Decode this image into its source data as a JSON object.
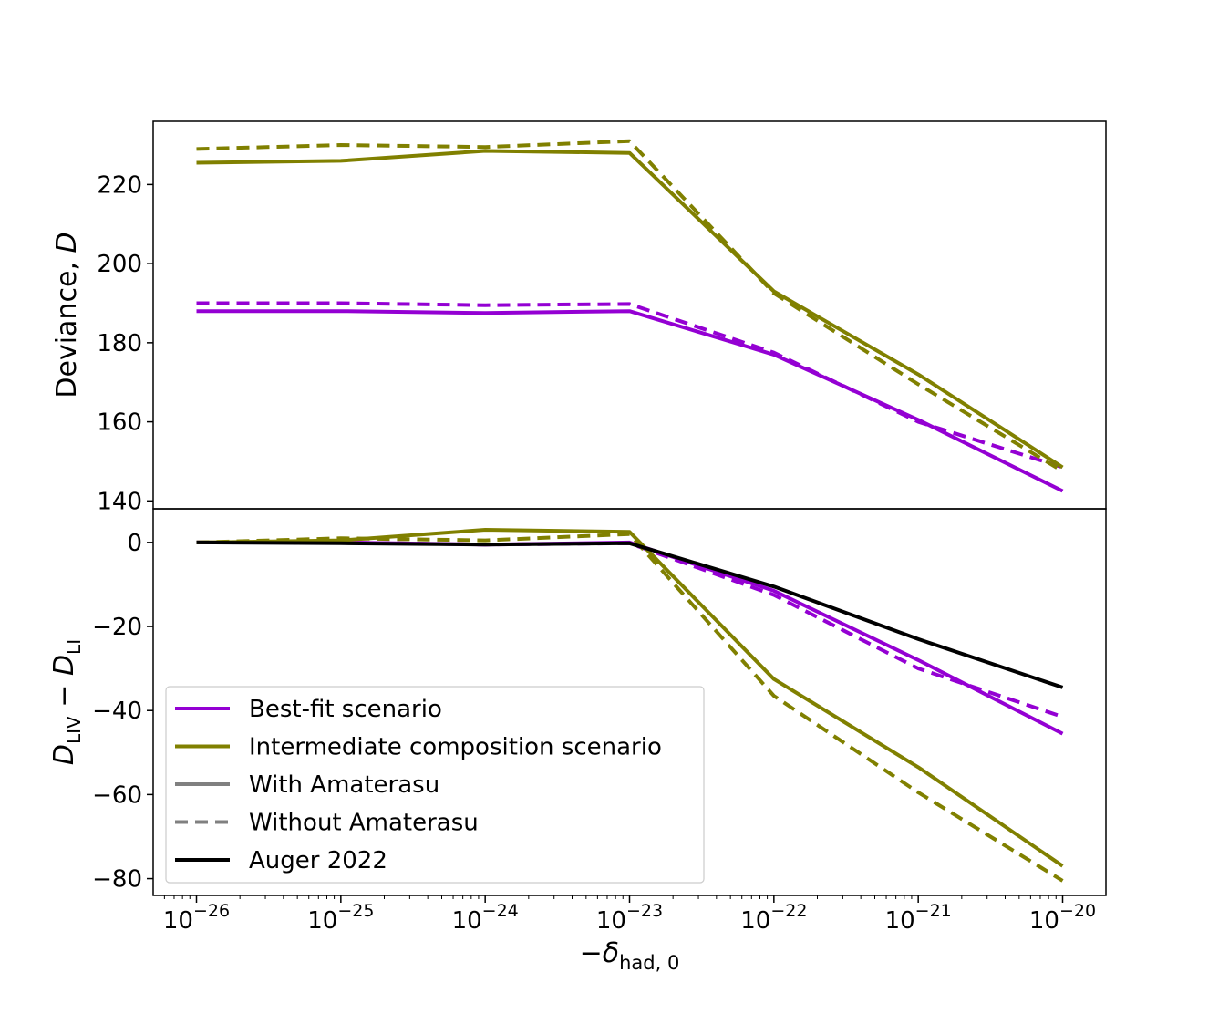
{
  "chart_data": [
    {
      "type": "line",
      "panel": "top",
      "ylabel_main": "Deviance, ",
      "ylabel_var": "D",
      "ylim": [
        138,
        236
      ],
      "yticks": [
        140,
        160,
        180,
        200,
        220
      ],
      "ytick_labels": [
        "140",
        "160",
        "180",
        "200",
        "220"
      ],
      "x": [
        1e-26,
        1e-25,
        1e-24,
        1e-23,
        1e-22,
        1e-21,
        1e-20
      ],
      "series": [
        {
          "name": "Best-fit scenario",
          "variant": "With Amaterasu",
          "color": "#9400d3",
          "dash": "solid",
          "values": [
            188.0,
            188.0,
            187.5,
            188.0,
            177.0,
            160.5,
            142.5
          ]
        },
        {
          "name": "Best-fit scenario",
          "variant": "Without Amaterasu",
          "color": "#9400d3",
          "dash": "dashed",
          "values": [
            190.0,
            190.0,
            189.5,
            189.8,
            177.5,
            160.0,
            148.5
          ]
        },
        {
          "name": "Intermediate composition scenario",
          "variant": "With Amaterasu",
          "color": "#808000",
          "dash": "solid",
          "values": [
            225.5,
            226.0,
            228.5,
            228.0,
            193.0,
            172.0,
            148.5
          ]
        },
        {
          "name": "Intermediate composition scenario",
          "variant": "Without Amaterasu",
          "color": "#808000",
          "dash": "dashed",
          "values": [
            229.0,
            230.0,
            229.5,
            231.0,
            192.5,
            169.5,
            147.5
          ]
        }
      ]
    },
    {
      "type": "line",
      "panel": "bottom",
      "ylim": [
        -84,
        8
      ],
      "yticks": [
        -80,
        -60,
        -40,
        -20,
        0
      ],
      "ytick_labels": [
        "−80",
        "−60",
        "−40",
        "−20",
        "0"
      ],
      "xlim_log10": [
        -26.3,
        -19.7
      ],
      "x_exponents": [
        -26,
        -25,
        -24,
        -23,
        -22,
        -21,
        -20
      ],
      "xtick_labels": [
        "−26",
        "−25",
        "−24",
        "−23",
        "−22",
        "−21",
        "−20"
      ],
      "xlabel_prefix": "−δ",
      "xlabel_sub": "had, 0",
      "ylabel_d1": "D",
      "ylabel_sub1": "LIV",
      "ylabel_minus": " − ",
      "ylabel_d2": "D",
      "ylabel_sub2": "LI",
      "x": [
        1e-26,
        1e-25,
        1e-24,
        1e-23,
        1e-22,
        1e-21,
        1e-20
      ],
      "series": [
        {
          "name": "Best-fit scenario",
          "variant": "With Amaterasu",
          "color": "#9400d3",
          "dash": "solid",
          "values": [
            0.0,
            0.0,
            -0.5,
            0.0,
            -11.5,
            -28.0,
            -45.5
          ]
        },
        {
          "name": "Best-fit scenario",
          "variant": "Without Amaterasu",
          "color": "#9400d3",
          "dash": "dashed",
          "values": [
            0.0,
            0.0,
            -0.5,
            -0.2,
            -12.5,
            -30.0,
            -41.5
          ]
        },
        {
          "name": "Intermediate composition scenario",
          "variant": "With Amaterasu",
          "color": "#808000",
          "dash": "solid",
          "values": [
            0.0,
            0.5,
            3.0,
            2.5,
            -32.5,
            -53.5,
            -77.0
          ]
        },
        {
          "name": "Intermediate composition scenario",
          "variant": "Without Amaterasu",
          "color": "#808000",
          "dash": "dashed",
          "values": [
            0.0,
            1.0,
            0.5,
            2.0,
            -36.5,
            -59.5,
            -80.5
          ]
        },
        {
          "name": "Auger 2022",
          "variant": "",
          "color": "#000000",
          "dash": "solid",
          "values": [
            0.0,
            -0.2,
            -0.5,
            -0.2,
            -10.5,
            -23.0,
            -34.5
          ]
        }
      ]
    }
  ],
  "legend": {
    "placement": "lower-left",
    "items": [
      {
        "label": "Best-fit scenario",
        "color": "#9400d3",
        "dash": "solid"
      },
      {
        "label": "Intermediate composition scenario",
        "color": "#808000",
        "dash": "solid"
      },
      {
        "label": "With Amaterasu",
        "color": "#808080",
        "dash": "solid"
      },
      {
        "label": "Without Amaterasu",
        "color": "#808080",
        "dash": "dashed"
      },
      {
        "label": "Auger 2022",
        "color": "#000000",
        "dash": "solid"
      }
    ]
  }
}
